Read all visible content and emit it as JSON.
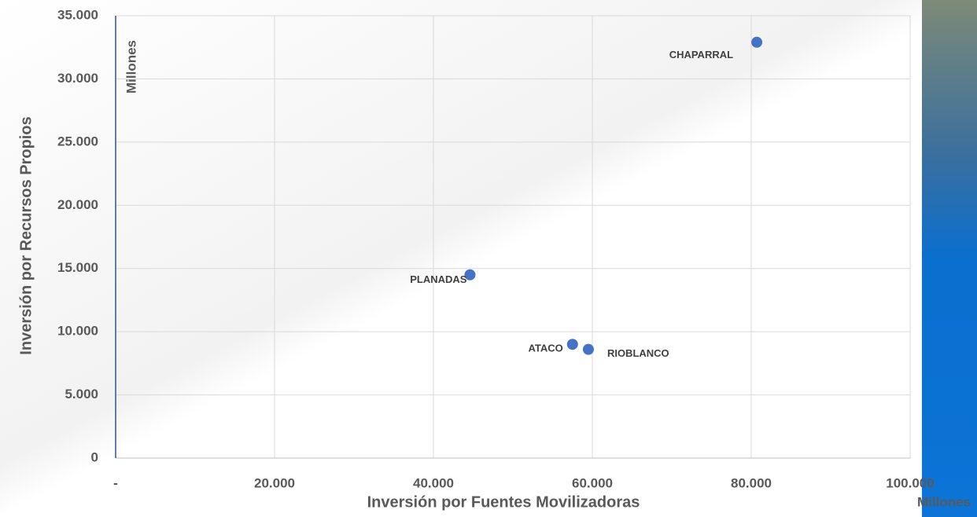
{
  "chart_data": {
    "type": "scatter",
    "x_label": "Inversión por Fuentes Movilizadoras",
    "y_label": "Inversión por Recursos Propios",
    "x_unit": "Millones",
    "y_unit": "Millones",
    "labels": [
      "CHAPARRAL",
      "PLANADAS",
      "ATACO",
      "RIOBLANCO"
    ],
    "x": [
      80700,
      44600,
      57500,
      59500
    ],
    "values": [
      32900,
      14500,
      9000,
      8600
    ],
    "color": "#4472c4",
    "xlim": [
      0,
      100000
    ],
    "xticks": [
      {
        "value": 0,
        "label": "-"
      },
      {
        "value": 20000,
        "label": "20.000"
      },
      {
        "value": 40000,
        "label": "40.000"
      },
      {
        "value": 60000,
        "label": "60.000"
      },
      {
        "value": 80000,
        "label": "80.000"
      },
      {
        "value": 100000,
        "label": "100.000"
      }
    ],
    "ylim": [
      0,
      35000
    ],
    "yticks": [
      0,
      {
        "value": 5000,
        "label": "5.000"
      },
      {
        "value": 10000,
        "label": "10.000"
      },
      {
        "value": 15000,
        "label": "15.000"
      },
      {
        "value": 20000,
        "label": "20.000"
      },
      {
        "value": 25000,
        "label": "25.000"
      },
      {
        "value": 30000,
        "label": "30.000"
      },
      {
        "value": 35000,
        "label": "35.000"
      }
    ],
    "grid": true
  }
}
